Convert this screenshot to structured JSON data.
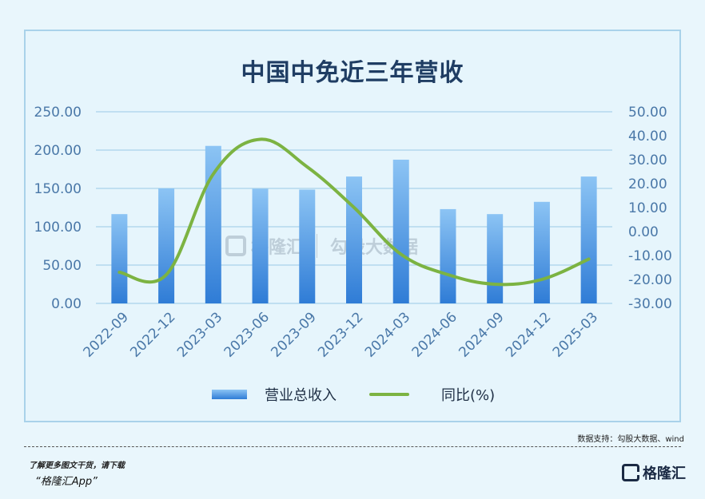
{
  "chart_data": {
    "type": "bar",
    "title": "中国中免近三年营收",
    "categories": [
      "2022-09",
      "2022-12",
      "2023-03",
      "2023-06",
      "2023-09",
      "2023-12",
      "2024-03",
      "2024-06",
      "2024-09",
      "2024-12",
      "2025-03"
    ],
    "series": [
      {
        "name": "营业总收入",
        "type": "bar",
        "axis": "left",
        "values": [
          116.5,
          150.0,
          205.5,
          149.5,
          148.5,
          165.5,
          187.5,
          123.0,
          116.5,
          132.5,
          165.5
        ]
      },
      {
        "name": "同比(%)",
        "type": "line",
        "axis": "right",
        "values": [
          -17.0,
          -18.0,
          24.0,
          38.5,
          27.0,
          10.0,
          -9.5,
          -18.0,
          -22.0,
          -20.0,
          -11.5
        ]
      }
    ],
    "y_left": {
      "ticks": [
        "250.00",
        "200.00",
        "150.00",
        "100.00",
        "50.00",
        "0.00"
      ],
      "ylim": [
        0,
        250
      ]
    },
    "y_right": {
      "ticks": [
        "50.00",
        "40.00",
        "30.00",
        "20.00",
        "10.00",
        "0.00",
        "-10.00",
        "-20.00",
        "-30.00"
      ],
      "ylim": [
        -30,
        50
      ]
    },
    "grid": true,
    "legend_placement": "bottom",
    "colors": {
      "bar_top": "#8cc4f4",
      "bar_bottom": "#2f7cd6",
      "line": "#7cb342",
      "axis_text": "#4a78a8",
      "grid": "#a9d2ea"
    }
  },
  "footer": {
    "source": "数据支持：勾股大数据、wind",
    "promo_line1": "了解更多图文干货，请下载",
    "promo_line2": "“格隆汇App”",
    "brand": "格隆汇"
  },
  "watermark": {
    "brand": "格隆汇",
    "secondary": "勾股大数据"
  }
}
